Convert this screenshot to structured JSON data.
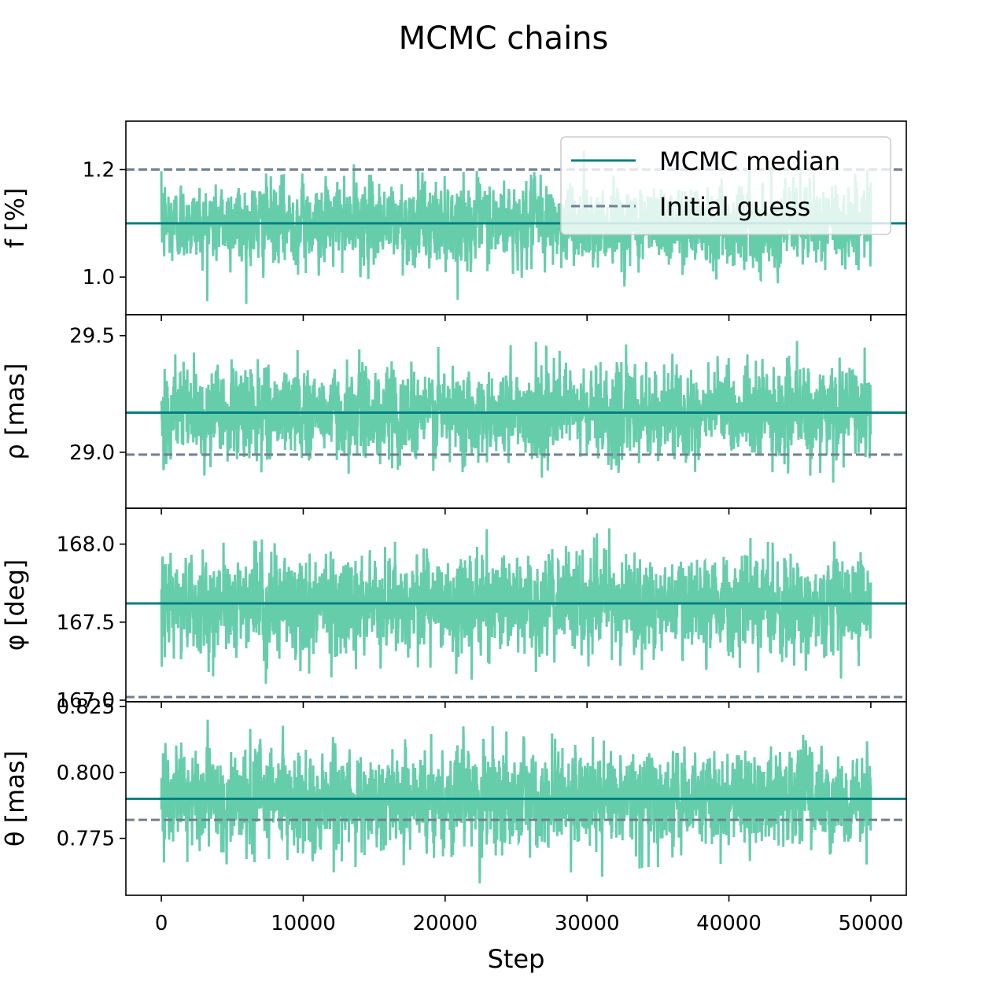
{
  "figure": {
    "title": "MCMC chains",
    "xlabel": "Step"
  },
  "legend": {
    "placement": "upper-right of top panel",
    "entries": [
      {
        "label": "MCMC median",
        "style": "solid",
        "color": "#008080"
      },
      {
        "label": "Initial guess",
        "style": "dashed",
        "color": "#708090"
      }
    ]
  },
  "colors": {
    "chain": "#66cdaa",
    "median": "#008080",
    "initial_guess": "#708090"
  },
  "chart_data": [
    {
      "type": "line",
      "ylabel": "f [%]",
      "xlim": [
        -2500,
        52500
      ],
      "ylim": [
        0.93,
        1.29
      ],
      "yticks": [
        {
          "value": 1.0,
          "label": "1.0"
        },
        {
          "value": 1.2,
          "label": "1.2"
        }
      ],
      "chain": {
        "steps": 50000,
        "median": 1.1,
        "range": [
          0.95,
          1.27
        ],
        "spread": 0.035
      },
      "median": 1.1,
      "initial_guess": 1.2
    },
    {
      "type": "line",
      "ylabel": "ρ [mas]",
      "xlim": [
        -2500,
        52500
      ],
      "ylim": [
        28.76,
        29.59
      ],
      "yticks": [
        {
          "value": 29.0,
          "label": "29.0"
        },
        {
          "value": 29.5,
          "label": "29.5"
        }
      ],
      "chain": {
        "steps": 50000,
        "median": 29.17,
        "range": [
          28.8,
          29.56
        ],
        "spread": 0.09
      },
      "median": 29.17,
      "initial_guess": 28.99
    },
    {
      "type": "line",
      "ylabel": "φ [deg]",
      "xlim": [
        -2500,
        52500
      ],
      "ylim": [
        166.99,
        168.23
      ],
      "yticks": [
        {
          "value": 167.0,
          "label": "167.0"
        },
        {
          "value": 167.5,
          "label": "167.5"
        },
        {
          "value": 168.0,
          "label": "168.0"
        }
      ],
      "chain": {
        "steps": 50000,
        "median": 167.62,
        "range": [
          167.05,
          168.18
        ],
        "spread": 0.14
      },
      "median": 167.62,
      "initial_guess": 167.02
    },
    {
      "type": "line",
      "ylabel": "θ [mas]",
      "xlim": [
        -2500,
        52500
      ],
      "ylim": [
        0.7534,
        0.8268
      ],
      "yticks": [
        {
          "value": 0.775,
          "label": "0.775"
        },
        {
          "value": 0.8,
          "label": "0.800"
        },
        {
          "value": 0.825,
          "label": "0.825"
        }
      ],
      "chain": {
        "steps": 50000,
        "median": 0.79,
        "range": [
          0.756,
          0.823
        ],
        "spread": 0.0085
      },
      "median": 0.79,
      "initial_guess": 0.782
    }
  ],
  "xticks": [
    {
      "value": 0,
      "label": "0"
    },
    {
      "value": 10000,
      "label": "10000"
    },
    {
      "value": 20000,
      "label": "20000"
    },
    {
      "value": 30000,
      "label": "30000"
    },
    {
      "value": 40000,
      "label": "40000"
    },
    {
      "value": 50000,
      "label": "50000"
    }
  ]
}
